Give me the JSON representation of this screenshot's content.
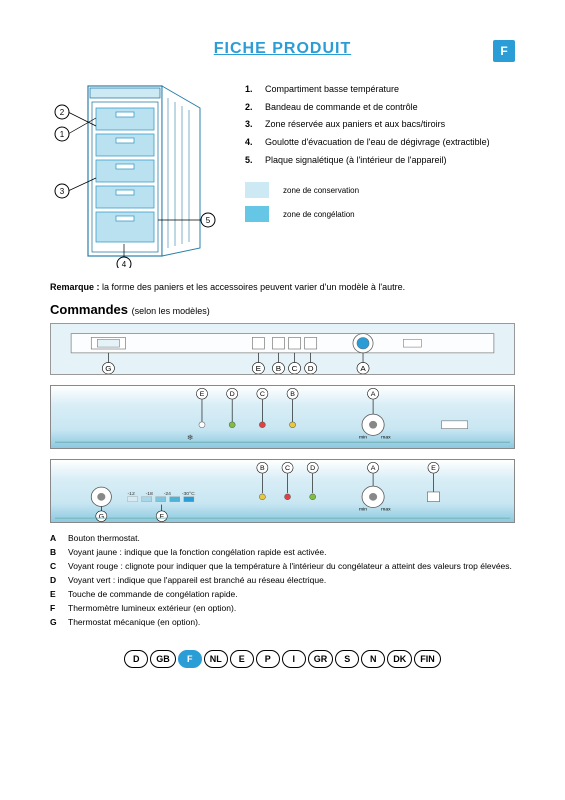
{
  "title": "FICHE PRODUIT",
  "languageBadge": "F",
  "colors": {
    "brandBlue": "#2b9dd6",
    "panelBg": "#e5f3f8",
    "zoneConservation": "#cce9f4",
    "zoneCongelation": "#66c6e6",
    "drawerFill": "#b9e1f0",
    "drawerStroke": "#3c9fc9"
  },
  "diagram": {
    "callouts": [
      "1",
      "2",
      "3",
      "4",
      "5"
    ]
  },
  "legend": [
    {
      "num": "1.",
      "text": "Compartiment basse température"
    },
    {
      "num": "2.",
      "text": "Bandeau de commande et de contrôle"
    },
    {
      "num": "3.",
      "text": "Zone réservée aux paniers et aux bacs/tiroirs"
    },
    {
      "num": "4.",
      "text": "Goulotte d'évacuation de l'eau de dégivrage (extractible)"
    },
    {
      "num": "5.",
      "text": "Plaque signalétique (à l'intérieur de l'appareil)"
    }
  ],
  "zones": [
    {
      "label": "zone de conservation",
      "colorKey": "zoneConservation"
    },
    {
      "label": "zone de congélation",
      "colorKey": "zoneCongelation"
    }
  ],
  "remarkLabel": "Remarque :",
  "remarkText": "la forme des paniers et les accessoires peuvent varier d'un modèle à l'autre.",
  "commandesHeading": "Commandes",
  "commandesSub": "(selon les modèles)",
  "panel1": {
    "letters": [
      "G",
      "E",
      "B",
      "C",
      "D",
      "A"
    ]
  },
  "panel2": {
    "letters": [
      "E",
      "D",
      "C",
      "B",
      "A"
    ]
  },
  "panel3": {
    "topLetters": [
      "B",
      "C",
      "D",
      "A",
      "E"
    ],
    "bottomLetters": [
      "G",
      "F"
    ],
    "tempScale": [
      "-12",
      "-18",
      "-24",
      "-30°C"
    ]
  },
  "definitions": [
    {
      "letter": "A",
      "text": "Bouton thermostat."
    },
    {
      "letter": "B",
      "text": "Voyant jaune : indique que la fonction congélation rapide est activée."
    },
    {
      "letter": "C",
      "text": "Voyant rouge : clignote pour indiquer que la température à l'intérieur du congélateur a atteint des valeurs trop élevées."
    },
    {
      "letter": "D",
      "text": "Voyant vert : indique que l'appareil est branché au réseau électrique."
    },
    {
      "letter": "E",
      "text": "Touche de commande de congélation rapide."
    },
    {
      "letter": "F",
      "text": "Thermomètre lumineux extérieur (en option)."
    },
    {
      "letter": "G",
      "text": "Thermostat mécanique (en option)."
    }
  ],
  "languages": [
    "D",
    "GB",
    "F",
    "NL",
    "E",
    "P",
    "I",
    "GR",
    "S",
    "N",
    "DK",
    "FIN"
  ],
  "activeLanguage": "F"
}
